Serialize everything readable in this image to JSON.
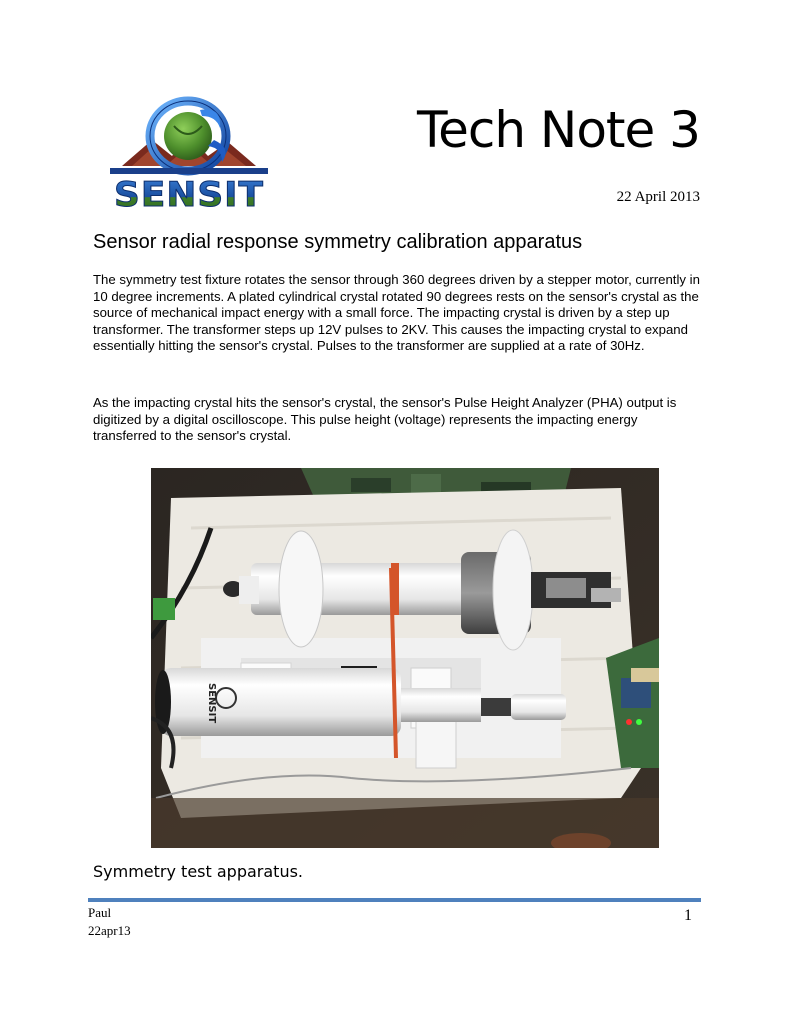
{
  "header": {
    "logo_text": "SENSIT",
    "title": "Tech Note 3",
    "date": "22 April 2013"
  },
  "main": {
    "heading": "Sensor radial response symmetry calibration apparatus",
    "paragraphs": [
      "The symmetry test fixture rotates the sensor through 360 degrees driven by a stepper motor, currently in 10 degree increments.  A plated cylindrical crystal rotated 90 degrees rests on the sensor's crystal as the source of mechanical impact energy with a small force.  The impacting crystal is driven by a step up transformer.  The transformer steps up 12V pulses to 2KV. This causes the impacting crystal to expand essentially hitting the sensor's crystal.  Pulses to the transformer are supplied at a rate of 30Hz.",
      "As the impacting crystal hits the sensor's crystal, the sensor's Pulse Height Analyzer (PHA) output is digitized by a digital oscilloscope.  This pulse height (voltage) represents the impacting energy transferred to the sensor's crystal."
    ],
    "photo_cylinder_label": "SENSIT",
    "caption": "Symmetry test apparatus."
  },
  "footer": {
    "author": "Paul",
    "doc_code": "22apr13",
    "page_number": "1"
  },
  "colors": {
    "rule": "#4f81bd",
    "logo_blue": "#1f5fb5",
    "logo_green": "#3f7a2e"
  }
}
